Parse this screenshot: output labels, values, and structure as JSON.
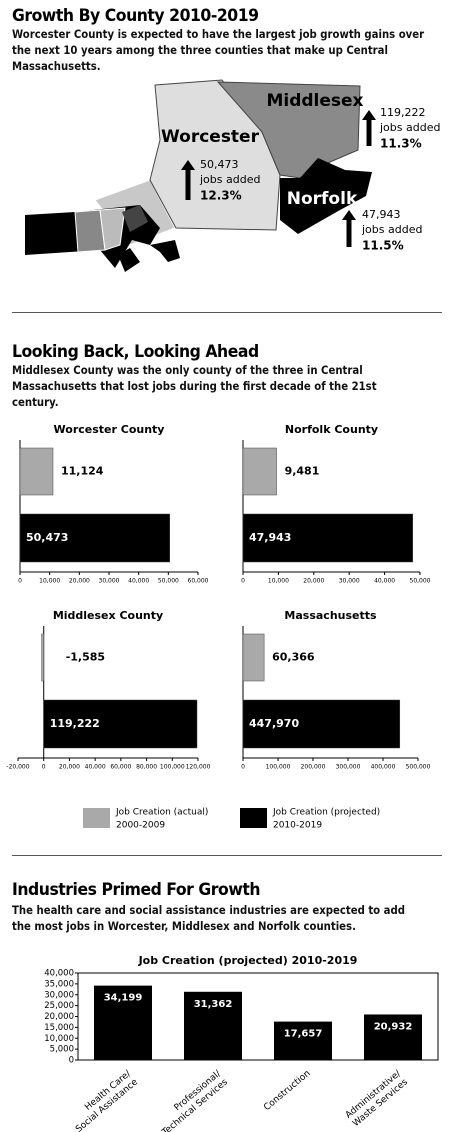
{
  "header": {
    "title": "Growth By County 2010-2019",
    "subtitle": "Worcester County is expected to have the largest job growth gains over the next 10 years among the three counties that make up Central Massachusetts."
  },
  "map": {
    "counties": [
      {
        "name": "Worcester",
        "jobs": "50,473",
        "jobs_text": "jobs added",
        "percent": "12.3%"
      },
      {
        "name": "Middlesex",
        "jobs": "119,222",
        "jobs_text": "jobs added",
        "percent": "11.3%"
      },
      {
        "name": "Norfolk",
        "jobs": "47,943",
        "jobs_text": "jobs added",
        "percent": "11.5%"
      }
    ]
  },
  "section2": {
    "title": "Looking Back, Looking Ahead",
    "subtitle": "Middlesex County was the only county of the three in Central Massachusetts that lost jobs during the first decade of the 21st century."
  },
  "legend": [
    {
      "label": "Job Creation (actual)",
      "period": "2000-2009",
      "color": "#a9a9a9"
    },
    {
      "label": "Job Creation (projected)",
      "period": "2010-2019",
      "color": "#000000"
    }
  ],
  "section3": {
    "title": "Industries Primed For Growth",
    "subtitle": "The health care and social assistance industries are expected to add the most jobs in Worcester, Middlesex and Norfolk counties."
  },
  "chart_data": [
    {
      "type": "hbar",
      "title": "Worcester County",
      "values": [
        11124,
        50473
      ],
      "value_labels": [
        "11,124",
        "50,473"
      ],
      "xlim": [
        0,
        60000
      ],
      "xticks": [
        0,
        {
          "value": 10000,
          "label": "10,000"
        },
        {
          "value": 20000,
          "label": "20,000"
        },
        {
          "value": 30000,
          "label": "30,000"
        },
        {
          "value": 40000,
          "label": "40,000"
        },
        {
          "value": 50000,
          "label": "50,000"
        },
        {
          "value": 60000,
          "label": "60,000"
        }
      ]
    },
    {
      "type": "hbar",
      "title": "Norfolk County",
      "values": [
        9481,
        47943
      ],
      "value_labels": [
        "9,481",
        "47,943"
      ],
      "xlim": [
        0,
        50000
      ],
      "xticks": [
        0,
        {
          "value": 10000,
          "label": "10,000"
        },
        {
          "value": 20000,
          "label": "20,000"
        },
        {
          "value": 30000,
          "label": "30,000"
        },
        {
          "value": 40000,
          "label": "40,000"
        },
        {
          "value": 50000,
          "label": "50,000"
        }
      ]
    },
    {
      "type": "hbar",
      "title": "Middlesex County",
      "values": [
        -1585,
        119222
      ],
      "value_labels": [
        "-1,585",
        "119,222"
      ],
      "xlim": [
        -20000,
        120000
      ],
      "xticks": [
        {
          "value": -20000,
          "label": "-20,000"
        },
        0,
        {
          "value": 20000,
          "label": "20,000"
        },
        {
          "value": 40000,
          "label": "40,000"
        },
        {
          "value": 60000,
          "label": "60,000"
        },
        {
          "value": 80000,
          "label": "80,000"
        },
        {
          "value": 100000,
          "label": "100,000"
        },
        {
          "value": 120000,
          "label": "120,000"
        }
      ]
    },
    {
      "type": "hbar",
      "title": "Massachusetts",
      "values": [
        60366,
        447970
      ],
      "value_labels": [
        "60,366",
        "447,970"
      ],
      "xlim": [
        0,
        500000
      ],
      "xticks": [
        0,
        {
          "value": 100000,
          "label": "100,000"
        },
        {
          "value": 200000,
          "label": "200,000"
        },
        {
          "value": 300000,
          "label": "300,000"
        },
        {
          "value": 400000,
          "label": "400,000"
        },
        {
          "value": 500000,
          "label": "500,000"
        }
      ]
    },
    {
      "type": "bar",
      "title": "Job Creation (projected) 2010-2019",
      "categories": [
        "Health Care/ Social Assistance",
        "Professional/ Technical Services",
        "Construction",
        "Administrative/ Waste Services"
      ],
      "values": [
        34199,
        31362,
        17657,
        20932
      ],
      "value_labels": [
        "34,199",
        "31,362",
        "17,657",
        "20,932"
      ],
      "color": "#000000",
      "ylim": [
        0,
        40000
      ],
      "yticks": [
        0,
        {
          "value": 5000,
          "label": "5,000"
        },
        {
          "value": 10000,
          "label": "10,000"
        },
        {
          "value": 15000,
          "label": "15,000"
        },
        {
          "value": 20000,
          "label": "20,000"
        },
        {
          "value": 25000,
          "label": "25,000"
        },
        {
          "value": 30000,
          "label": "30,000"
        },
        {
          "value": 35000,
          "label": "35,000"
        },
        {
          "value": 40000,
          "label": "40,000"
        }
      ]
    }
  ]
}
